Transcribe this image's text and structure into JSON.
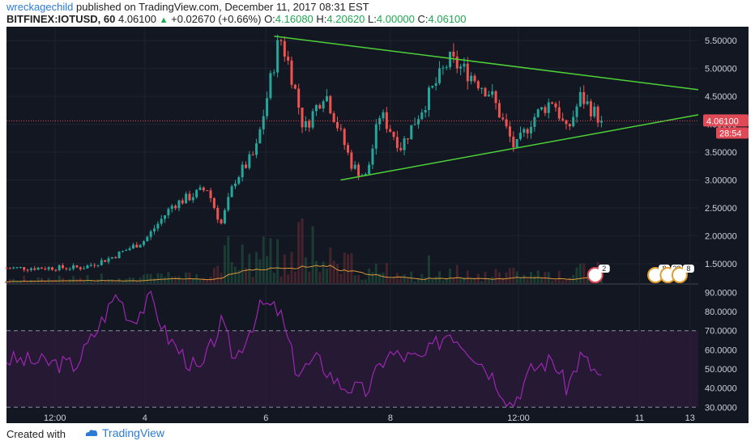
{
  "header": {
    "user": "wreckagechild",
    "published_text": "published on TradingView.com, December 11, 2017 08:31 EST",
    "symbol": "BITFINEX:IOTUSD, 60",
    "last": "4.06100",
    "change": "+0.02670 (+0.66%)",
    "o_label": "O:",
    "o_value": "4.16080",
    "h_label": "H:",
    "h_value": "4.20620",
    "l_label": "L:",
    "l_value": "4.00000",
    "c_label": "C:",
    "c_value": "4.06100"
  },
  "footer": {
    "created": "Created with",
    "brand": "TradingView"
  },
  "colors": {
    "background": "#131722",
    "up": "#26a69a",
    "down": "#ef5350",
    "trendline": "#4cd137",
    "volume_ma": "#d99a3a",
    "rsi_line": "#9c27b0",
    "rsi_band": "#2a1a3a",
    "price_badge": "#e04a56"
  },
  "chart_data": [
    {
      "type": "candlestick",
      "symbol": "BITFINEX:IOTUSD",
      "interval": "60",
      "price_axis_ticks": [
        "5.50000",
        "5.00000",
        "4.50000",
        "4.00000",
        "3.50000",
        "3.00000",
        "2.50000",
        "2.00000",
        "1.50000"
      ],
      "ylim": [
        1.15,
        5.75
      ],
      "time_axis_ticks": [
        "12:00",
        "4",
        "6",
        "8",
        "12:00",
        "11",
        "13"
      ],
      "current_price_label": "4.06100",
      "countdown_label": "28:54",
      "trendlines": [
        {
          "name": "upper",
          "from": {
            "t": "6",
            "price": 5.58
          },
          "to": {
            "t": "axis",
            "price": 4.62
          }
        },
        {
          "name": "lower",
          "from": {
            "t": "7",
            "price": 3.0
          },
          "to": {
            "t": "axis",
            "price": 4.17
          }
        }
      ],
      "anchor_path": [
        {
          "t": 0.0,
          "price": 1.42
        },
        {
          "t": 0.11,
          "price": 1.43
        },
        {
          "t": 0.15,
          "price": 1.6
        },
        {
          "t": 0.2,
          "price": 1.92
        },
        {
          "t": 0.24,
          "price": 2.55
        },
        {
          "t": 0.29,
          "price": 2.85
        },
        {
          "t": 0.31,
          "price": 2.2
        },
        {
          "t": 0.33,
          "price": 3.0
        },
        {
          "t": 0.36,
          "price": 3.5
        },
        {
          "t": 0.395,
          "price": 5.58
        },
        {
          "t": 0.41,
          "price": 5.0
        },
        {
          "t": 0.43,
          "price": 3.9
        },
        {
          "t": 0.46,
          "price": 4.6
        },
        {
          "t": 0.5,
          "price": 3.25
        },
        {
          "t": 0.52,
          "price": 3.05
        },
        {
          "t": 0.54,
          "price": 4.2
        },
        {
          "t": 0.57,
          "price": 3.6
        },
        {
          "t": 0.61,
          "price": 4.5
        },
        {
          "t": 0.64,
          "price": 5.15
        },
        {
          "t": 0.67,
          "price": 4.9
        },
        {
          "t": 0.7,
          "price": 4.55
        },
        {
          "t": 0.735,
          "price": 3.55
        },
        {
          "t": 0.76,
          "price": 4.1
        },
        {
          "t": 0.79,
          "price": 4.45
        },
        {
          "t": 0.81,
          "price": 3.85
        },
        {
          "t": 0.83,
          "price": 4.5
        },
        {
          "t": 0.86,
          "price": 4.06
        }
      ],
      "event_badges": [
        "2",
        "8",
        "22",
        "8"
      ]
    },
    {
      "type": "line",
      "name": "RSI",
      "ticks": [
        "90.0000",
        "80.0000",
        "70.0000",
        "60.0000",
        "50.0000",
        "40.0000",
        "30.0000"
      ],
      "ylim": [
        28,
        94
      ],
      "band": [
        30,
        70
      ],
      "anchor_path": [
        {
          "t": 0.0,
          "value": 55
        },
        {
          "t": 0.1,
          "value": 52
        },
        {
          "t": 0.13,
          "value": 70
        },
        {
          "t": 0.16,
          "value": 90
        },
        {
          "t": 0.18,
          "value": 75
        },
        {
          "t": 0.21,
          "value": 87
        },
        {
          "t": 0.23,
          "value": 68
        },
        {
          "t": 0.26,
          "value": 55
        },
        {
          "t": 0.28,
          "value": 48
        },
        {
          "t": 0.31,
          "value": 74
        },
        {
          "t": 0.33,
          "value": 55
        },
        {
          "t": 0.37,
          "value": 84
        },
        {
          "t": 0.395,
          "value": 80
        },
        {
          "t": 0.42,
          "value": 48
        },
        {
          "t": 0.45,
          "value": 55
        },
        {
          "t": 0.48,
          "value": 42
        },
        {
          "t": 0.52,
          "value": 38
        },
        {
          "t": 0.55,
          "value": 58
        },
        {
          "t": 0.6,
          "value": 55
        },
        {
          "t": 0.64,
          "value": 70
        },
        {
          "t": 0.67,
          "value": 60
        },
        {
          "t": 0.7,
          "value": 48
        },
        {
          "t": 0.73,
          "value": 31
        },
        {
          "t": 0.76,
          "value": 50
        },
        {
          "t": 0.79,
          "value": 55
        },
        {
          "t": 0.81,
          "value": 40
        },
        {
          "t": 0.83,
          "value": 57
        },
        {
          "t": 0.86,
          "value": 45
        }
      ]
    }
  ]
}
